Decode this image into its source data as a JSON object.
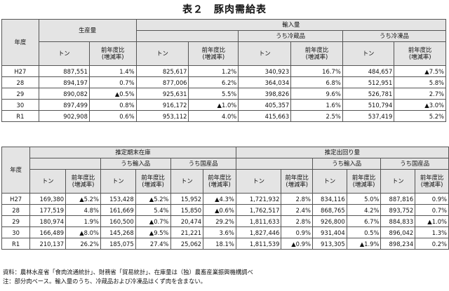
{
  "title": "表２　豚肉需給表",
  "labels": {
    "year": "年度",
    "production": "生産量",
    "imports": "輸入量",
    "chilled": "うち冷蔵品",
    "frozen": "うち冷凍品",
    "ton": "トン",
    "yoy": "前年度比\n(増減率)",
    "ending_stock": "推定期末在庫",
    "shipments": "推定出回り量",
    "imported": "うち輸入品",
    "domestic": "うち国産品"
  },
  "table1": [
    [
      "H27",
      "887,551",
      "1.4%",
      "825,617",
      "1.2%",
      "340,923",
      "16.7%",
      "484,657",
      "▲7.5%"
    ],
    [
      "28",
      "894,197",
      "0.7%",
      "877,006",
      "6.2%",
      "364,034",
      "6.8%",
      "512,951",
      "5.8%"
    ],
    [
      "29",
      "890,082",
      "▲0.5%",
      "925,631",
      "5.5%",
      "398,826",
      "9.6%",
      "526,781",
      "2.7%"
    ],
    [
      "30",
      "897,499",
      "0.8%",
      "916,172",
      "▲1.0%",
      "405,357",
      "1.6%",
      "510,794",
      "▲3.0%"
    ],
    [
      "R1",
      "902,908",
      "0.6%",
      "953,112",
      "4.0%",
      "415,663",
      "2.5%",
      "537,419",
      "5.2%"
    ]
  ],
  "table2": [
    [
      "H27",
      "169,380",
      "▲5.2%",
      "153,428",
      "▲5.2%",
      "15,952",
      "▲4.3%",
      "1,721,932",
      "2.8%",
      "834,116",
      "5.0%",
      "887,816",
      "0.9%"
    ],
    [
      "28",
      "177,519",
      "4.8%",
      "161,669",
      "5.4%",
      "15,850",
      "▲0.6%",
      "1,762,517",
      "2.4%",
      "868,765",
      "4.2%",
      "893,752",
      "0.7%"
    ],
    [
      "29",
      "180,974",
      "1.9%",
      "160,500",
      "▲0.7%",
      "20,474",
      "29.2%",
      "1,811,633",
      "2.8%",
      "926,800",
      "6.7%",
      "884,833",
      "▲1.0%"
    ],
    [
      "30",
      "166,489",
      "▲8.0%",
      "145,268",
      "▲9.5%",
      "21,221",
      "3.6%",
      "1,827,446",
      "0.9%",
      "931,404",
      "0.5%",
      "896,042",
      "1.3%"
    ],
    [
      "R1",
      "210,137",
      "26.2%",
      "185,075",
      "27.4%",
      "25,062",
      "18.1%",
      "1,811,539",
      "▲0.9%",
      "913,305",
      "▲1.9%",
      "898,234",
      "0.2%"
    ]
  ],
  "footnote_source": "資料：農林水産省「食肉流通統計」、財務省「貿易統計」、在庫量は（独）農畜産業振興機構調べ",
  "footnote_note": "注：部分肉ベース。輸入量のうち、冷蔵品および冷凍品はくず肉を含まない。"
}
